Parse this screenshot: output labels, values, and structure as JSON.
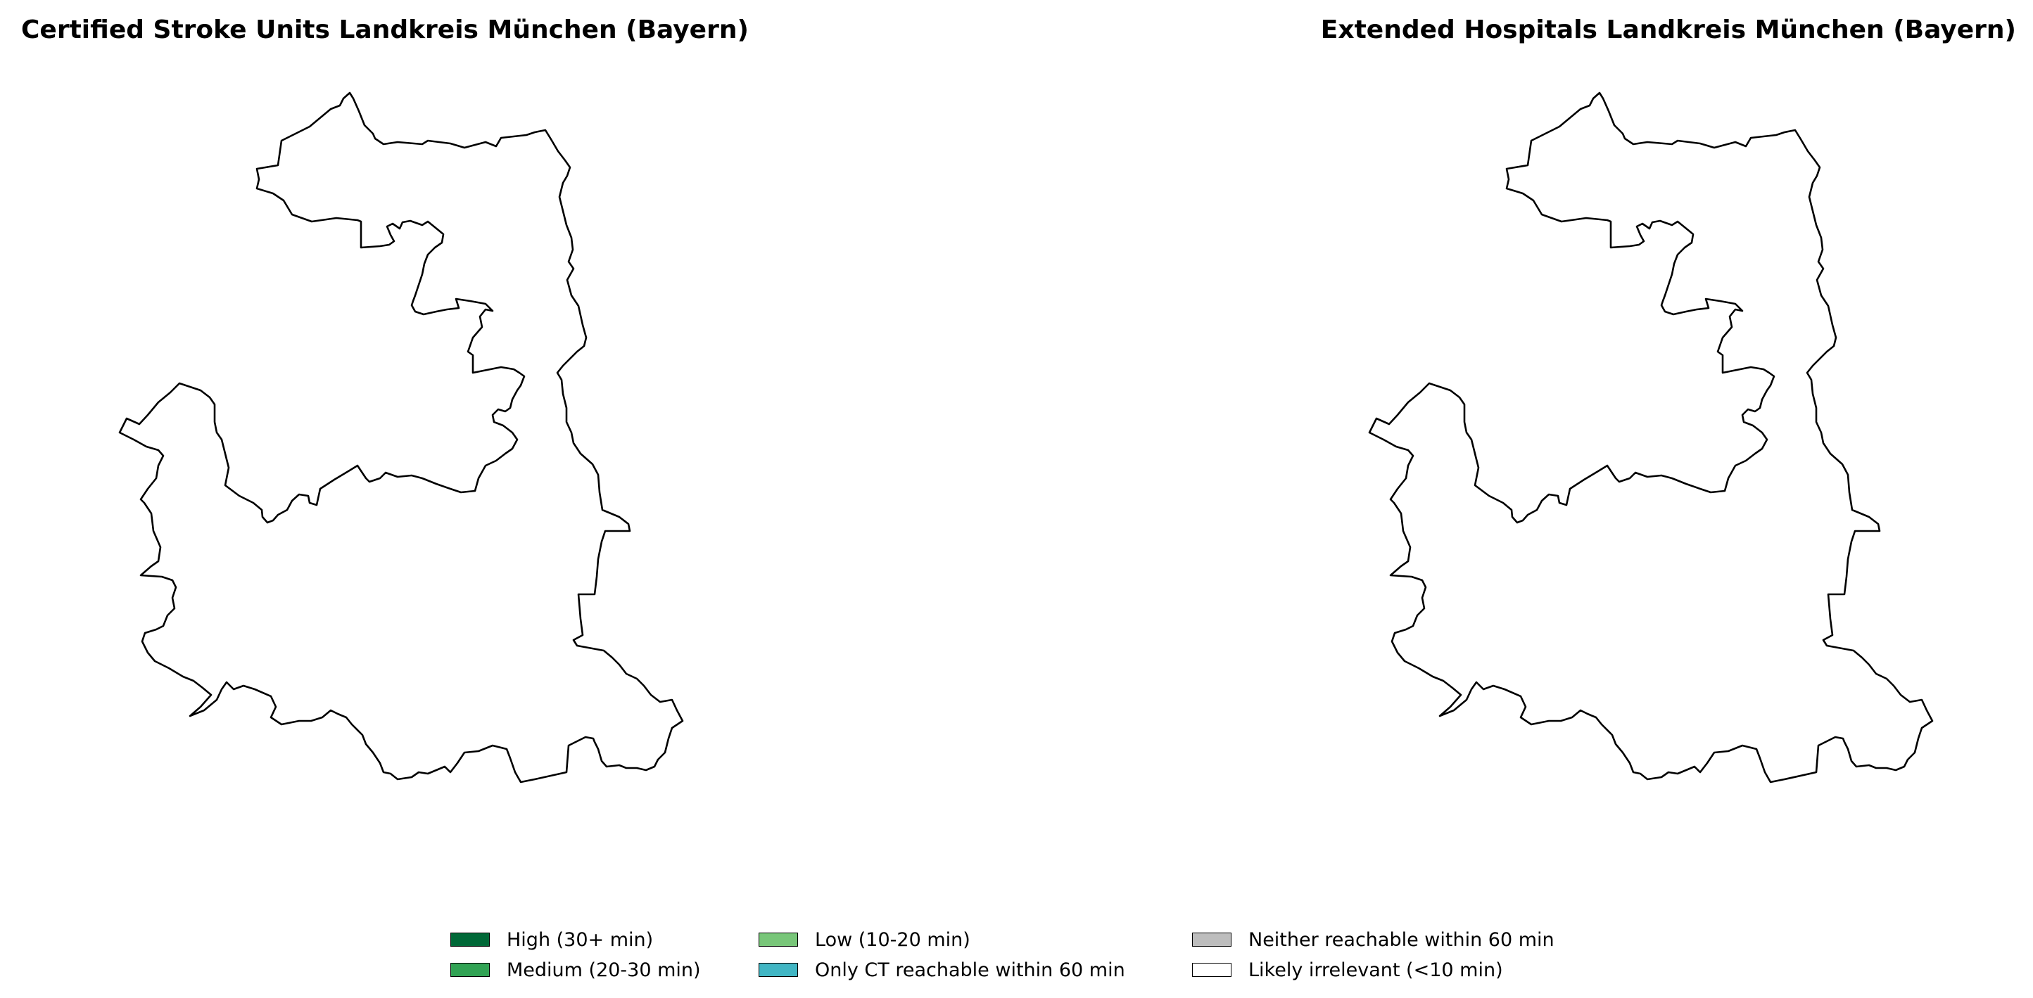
{
  "maps": [
    {
      "title": "Certified Stroke Units Landkreis München (Bayern)",
      "region_fill": "#ffffff"
    },
    {
      "title": "Extended Hospitals Landkreis München (Bayern)",
      "region_fill": "#ffffff"
    }
  ],
  "legend": {
    "items": [
      {
        "label": "High (30+ min)",
        "color": "#006837"
      },
      {
        "label": "Medium (20-30 min)",
        "color": "#31a354"
      },
      {
        "label": "Low (10-20 min)",
        "color": "#78c679"
      },
      {
        "label": "Only CT reachable within 60 min",
        "color": "#41b6c4"
      },
      {
        "label": "Neither reachable within 60 min",
        "color": "#bdbdbd"
      },
      {
        "label": "Likely irrelevant (<10 min)",
        "color": "#ffffff"
      }
    ]
  }
}
